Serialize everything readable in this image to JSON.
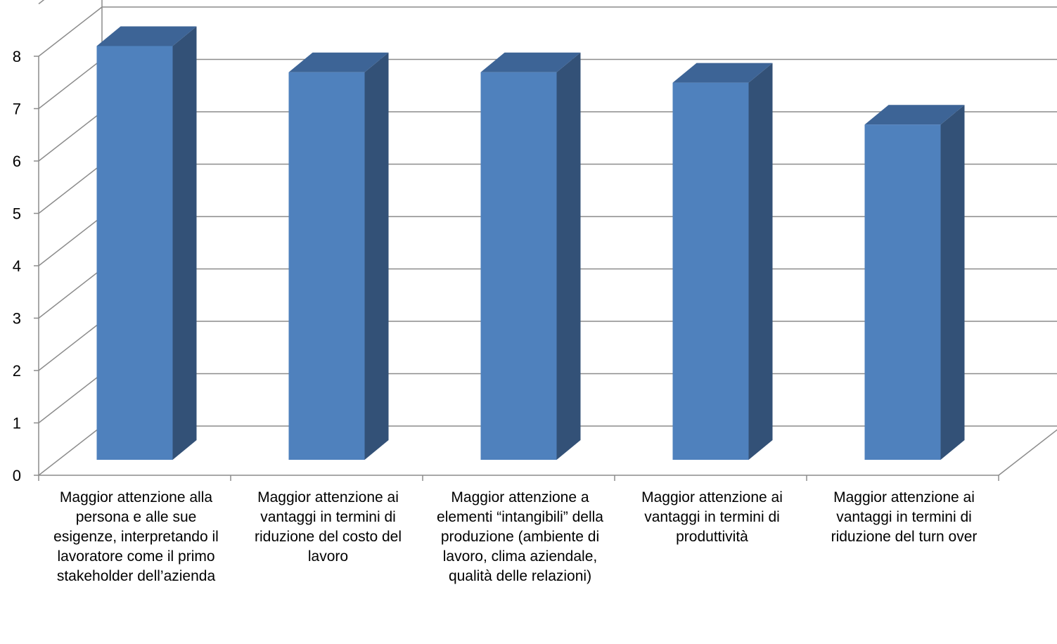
{
  "chart_data": {
    "type": "bar",
    "style": "3d-column",
    "color": "#4f81bd",
    "side_color": "#335177",
    "top_color": "#3d6496",
    "grid": true,
    "legend": "none",
    "ylim": [
      0,
      8
    ],
    "yticks": [
      "0",
      "1",
      "2",
      "3",
      "4",
      "5",
      "6",
      "7",
      "8"
    ],
    "categories": [
      "Maggior attenzione alla persona e alle sue esigenze, interpretando il lavoratore come il primo stakeholder dell’azienda",
      "Maggior attenzione ai vantaggi in termini di riduzione del costo del lavoro",
      "Maggior attenzione a elementi “intangibili” della produzione (ambiente di lavoro, clima aziendale, qualità delle relazioni)",
      "Maggior attenzione ai vantaggi in termini di produttività",
      "Maggior attenzione ai vantaggi in termini di riduzione del turn over"
    ],
    "values": [
      7.9,
      7.4,
      7.4,
      7.2,
      6.4
    ]
  }
}
